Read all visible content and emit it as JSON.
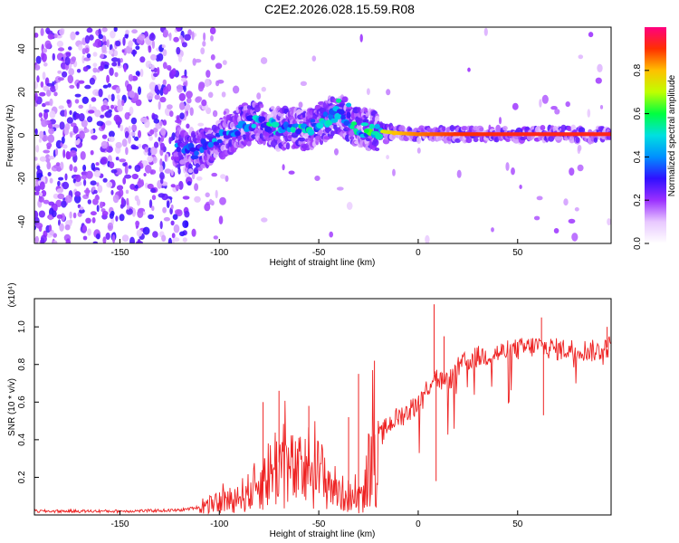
{
  "title": "C2E2.2026.028.15.59.R08",
  "chart_data": [
    {
      "type": "heatmap",
      "xlabel": "Height of straight line (km)",
      "ylabel": "Frequency (Hz)",
      "xlim": [
        -193,
        97
      ],
      "ylim": [
        -50,
        50
      ],
      "xticks": [
        -150,
        -100,
        -50,
        0,
        50
      ],
      "yticks": [
        -40,
        -20,
        0,
        20,
        40
      ],
      "colorbar": {
        "label": "Normalized spectral amplitude",
        "range": [
          0,
          1
        ],
        "ticks": [
          "0.0",
          "0.2",
          "0.4",
          "0.6",
          "0.8"
        ],
        "colors": [
          "#ffffff",
          "#e8c8ff",
          "#9b30ff",
          "#3010ff",
          "#0090ff",
          "#00e0e0",
          "#00ff40",
          "#c0ff00",
          "#ffc000",
          "#ff3000",
          "#ff0080"
        ]
      },
      "ridge": [
        {
          "x": -122,
          "f": -6,
          "a": 0.45
        },
        {
          "x": -112,
          "f": -8,
          "a": 0.4
        },
        {
          "x": -100,
          "f": -2,
          "a": 0.45
        },
        {
          "x": -90,
          "f": 4,
          "a": 0.5
        },
        {
          "x": -80,
          "f": 6,
          "a": 0.55
        },
        {
          "x": -70,
          "f": 3,
          "a": 0.5
        },
        {
          "x": -55,
          "f": 3,
          "a": 0.55
        },
        {
          "x": -40,
          "f": 10,
          "a": 0.45
        },
        {
          "x": -30,
          "f": 3,
          "a": 0.55
        },
        {
          "x": -20,
          "f": 2,
          "a": 0.7
        },
        {
          "x": -10,
          "f": 1,
          "a": 0.8
        },
        {
          "x": 0,
          "f": 0.5,
          "a": 0.85
        },
        {
          "x": 20,
          "f": 0.5,
          "a": 0.9
        },
        {
          "x": 50,
          "f": 0.5,
          "a": 0.92
        },
        {
          "x": 97,
          "f": 0.5,
          "a": 0.92
        }
      ]
    },
    {
      "type": "line",
      "xlabel": "Height of straight line (km)",
      "ylabel": "SNR (10 * v/v)",
      "multiplier_label": "(x10⁴)",
      "xlim": [
        -193,
        97
      ],
      "ylim": [
        0,
        1.15
      ],
      "xticks": [
        -150,
        -100,
        -50,
        0,
        50
      ],
      "yticks": [
        "0.2",
        "0.4",
        "0.6",
        "0.8",
        "1.0"
      ],
      "color": "#ee2222",
      "series": [
        {
          "name": "SNR",
          "x": [
            -193,
            -150,
            -120,
            -105,
            -95,
            -85,
            -75,
            -70,
            -65,
            -60,
            -55,
            -50,
            -45,
            -40,
            -35,
            -30,
            -27,
            -24,
            -20,
            -15,
            -10,
            -5,
            0,
            5,
            8,
            10,
            15,
            20,
            25,
            30,
            40,
            50,
            60,
            70,
            80,
            90,
            97
          ],
          "y": [
            0.02,
            0.02,
            0.025,
            0.05,
            0.08,
            0.12,
            0.22,
            0.28,
            0.24,
            0.22,
            0.26,
            0.22,
            0.18,
            0.12,
            0.1,
            0.08,
            0.12,
            0.3,
            0.4,
            0.48,
            0.52,
            0.55,
            0.6,
            0.68,
            0.75,
            0.72,
            0.7,
            0.78,
            0.82,
            0.84,
            0.86,
            0.88,
            0.9,
            0.88,
            0.88,
            0.87,
            0.9
          ]
        }
      ],
      "spikes": [
        {
          "x": -78,
          "y": 0.6
        },
        {
          "x": -70,
          "y": 0.66
        },
        {
          "x": -55,
          "y": 0.58
        },
        {
          "x": -35,
          "y": 0.52
        },
        {
          "x": -30,
          "y": 0.75
        },
        {
          "x": -22,
          "y": 0.82
        },
        {
          "x": 8,
          "y": 1.12
        },
        {
          "x": 13,
          "y": 0.95
        },
        {
          "x": 62,
          "y": 1.05
        },
        {
          "x": 95,
          "y": 1.0
        }
      ]
    }
  ]
}
